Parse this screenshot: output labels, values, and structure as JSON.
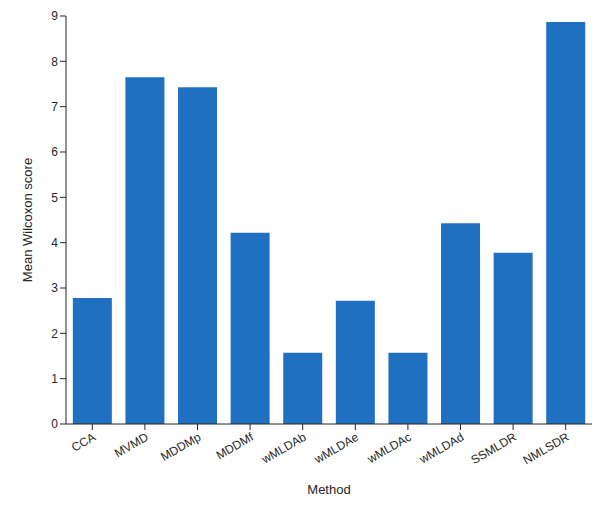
{
  "chart_data": {
    "type": "bar",
    "x_label": "Method",
    "y_label": "Mean Wilcoxon score",
    "categories": [
      "CCA",
      "MVMD",
      "MDDMp",
      "MDDMf",
      "wMLDAb",
      "wMLDAe",
      "wMLDAc",
      "wMLDAd",
      "SSMLDR",
      "NMLSDR"
    ],
    "values": [
      2.78,
      7.65,
      7.43,
      4.22,
      1.57,
      2.72,
      1.57,
      4.43,
      3.78,
      8.87
    ],
    "color": "#1f70c1",
    "ylim": [
      0,
      9
    ],
    "yticks": [
      0,
      1,
      2,
      3,
      4,
      5,
      6,
      7,
      8,
      9
    ],
    "grid": false
  }
}
